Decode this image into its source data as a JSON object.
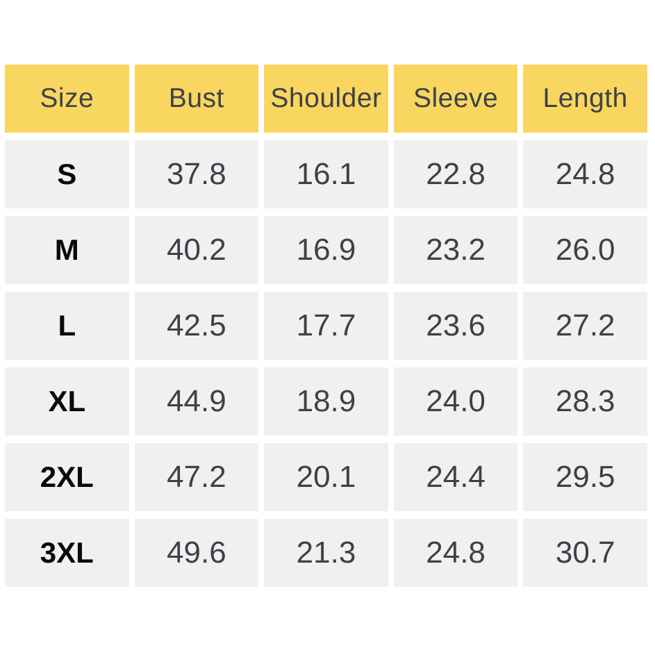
{
  "colors": {
    "header_bg": "#f9d65f",
    "cell_bg": "#f0f0f0",
    "header_text": "#3d4147",
    "value_text": "#3d4147",
    "size_label_text": "#0a0a0a",
    "page_bg": "#ffffff"
  },
  "chart_data": {
    "type": "table",
    "columns": [
      "Size",
      "Bust",
      "Shoulder",
      "Sleeve",
      "Length"
    ],
    "rows": [
      {
        "size": "S",
        "values": [
          "37.8",
          "16.1",
          "22.8",
          "24.8"
        ]
      },
      {
        "size": "M",
        "values": [
          "40.2",
          "16.9",
          "23.2",
          "26.0"
        ]
      },
      {
        "size": "L",
        "values": [
          "42.5",
          "17.7",
          "23.6",
          "27.2"
        ]
      },
      {
        "size": "XL",
        "values": [
          "44.9",
          "18.9",
          "24.0",
          "28.3"
        ]
      },
      {
        "size": "2XL",
        "values": [
          "47.2",
          "20.1",
          "24.4",
          "29.5"
        ]
      },
      {
        "size": "3XL",
        "values": [
          "49.6",
          "21.3",
          "24.8",
          "30.7"
        ]
      }
    ]
  }
}
